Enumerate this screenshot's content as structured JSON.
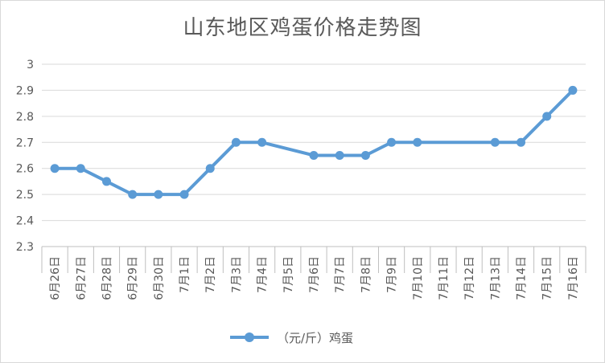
{
  "chart_data": {
    "type": "line",
    "title": "山东地区鸡蛋价格走势图",
    "categories": [
      "6月26日",
      "6月27日",
      "6月28日",
      "6月29日",
      "6月30日",
      "7月1日",
      "7月2日",
      "7月3日",
      "7月4日",
      "7月5日",
      "7月6日",
      "7月7日",
      "7月8日",
      "7月9日",
      "7月10日",
      "7月11日",
      "7月12日",
      "7月13日",
      "7月14日",
      "7月15日",
      "7月16日"
    ],
    "series": [
      {
        "name": "（元/斤）鸡蛋",
        "values": [
          2.6,
          2.6,
          2.55,
          2.5,
          2.5,
          2.5,
          2.6,
          2.7,
          2.7,
          null,
          2.65,
          2.65,
          2.65,
          2.7,
          2.7,
          null,
          null,
          2.7,
          2.7,
          2.8,
          2.9
        ],
        "color": "#5b9bd5"
      }
    ],
    "ylim": [
      2.3,
      3.0
    ],
    "yticks": [
      "2.3",
      "2.4",
      "2.5",
      "2.6",
      "2.7",
      "2.8",
      "2.9",
      "3"
    ],
    "grid": true,
    "legend_position": "bottom",
    "gridline_color": "#d9d9d9",
    "axis_color": "#bfbfbf",
    "text_color": "#595959"
  }
}
